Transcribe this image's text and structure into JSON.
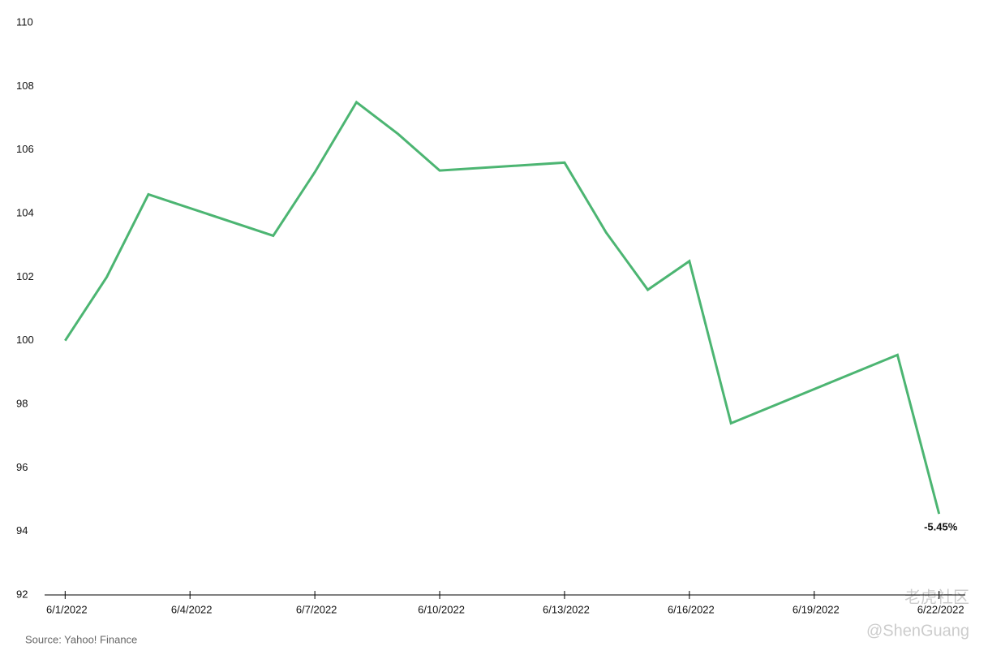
{
  "chart_data": {
    "type": "line",
    "x": [
      "6/1/2022",
      "6/2/2022",
      "6/3/2022",
      "6/6/2022",
      "6/7/2022",
      "6/8/2022",
      "6/9/2022",
      "6/10/2022",
      "6/13/2022",
      "6/14/2022",
      "6/15/2022",
      "6/16/2022",
      "6/17/2022",
      "6/21/2022",
      "6/22/2022"
    ],
    "series": [
      {
        "color": "#4cb572",
        "values": [
          100,
          102.0,
          104.6,
          103.3,
          105.3,
          107.5,
          106.5,
          105.35,
          105.6,
          103.4,
          101.6,
          102.5,
          97.4,
          99.55,
          94.55
        ]
      }
    ],
    "xlim": [
      "5/31/2022",
      "6/23/2022"
    ],
    "xticks": [
      "6/1/2022",
      "6/4/2022",
      "6/7/2022",
      "6/10/2022",
      "6/13/2022",
      "6/16/2022",
      "6/19/2022",
      "6/22/2022"
    ],
    "ylim": [
      92,
      110
    ],
    "yticks": [
      92,
      94,
      96,
      98,
      100,
      102,
      104,
      106,
      108,
      110
    ],
    "grid": false,
    "annotation": "-5.45%",
    "source": "Source: Yahoo! Finance",
    "watermark": [
      "老虎社区",
      "@ShenGuang"
    ]
  }
}
